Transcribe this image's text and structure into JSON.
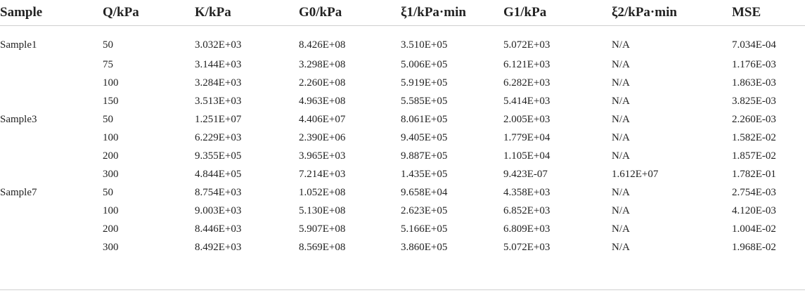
{
  "table": {
    "headers": [
      "Sample",
      "Q/kPa",
      "K/kPa",
      "G0/kPa",
      "ξ1/kPa·min",
      "G1/kPa",
      "ξ2/kPa·min",
      "MSE"
    ],
    "rows": [
      [
        "Sample1",
        "50",
        "3.032E+03",
        "8.426E+08",
        "3.510E+05",
        "5.072E+03",
        "N/A",
        "7.034E-04"
      ],
      [
        "",
        "75",
        "3.144E+03",
        "3.298E+08",
        "5.006E+05",
        "6.121E+03",
        "N/A",
        "1.176E-03"
      ],
      [
        "",
        "100",
        "3.284E+03",
        "2.260E+08",
        "5.919E+05",
        "6.282E+03",
        "N/A",
        "1.863E-03"
      ],
      [
        "",
        "150",
        "3.513E+03",
        "4.963E+08",
        "5.585E+05",
        "5.414E+03",
        "N/A",
        "3.825E-03"
      ],
      [
        "Sample3",
        "50",
        "1.251E+07",
        "4.406E+07",
        "8.061E+05",
        "2.005E+03",
        "N/A",
        "2.260E-03"
      ],
      [
        "",
        "100",
        "6.229E+03",
        "2.390E+06",
        "9.405E+05",
        "1.779E+04",
        "N/A",
        "1.582E-02"
      ],
      [
        "",
        "200",
        "9.355E+05",
        "3.965E+03",
        "9.887E+05",
        "1.105E+04",
        "N/A",
        "1.857E-02"
      ],
      [
        "",
        "300",
        "4.844E+05",
        "7.214E+03",
        "1.435E+05",
        "9.423E-07",
        "1.612E+07",
        "1.782E-01"
      ],
      [
        "Sample7",
        "50",
        "8.754E+03",
        "1.052E+08",
        "9.658E+04",
        "4.358E+03",
        "N/A",
        "2.754E-03"
      ],
      [
        "",
        "100",
        "9.003E+03",
        "5.130E+08",
        "2.623E+05",
        "6.852E+03",
        "N/A",
        "4.120E-03"
      ],
      [
        "",
        "200",
        "8.446E+03",
        "5.907E+08",
        "5.166E+05",
        "6.809E+03",
        "N/A",
        "1.004E-02"
      ],
      [
        "",
        "300",
        "8.492E+03",
        "8.569E+08",
        "3.860E+05",
        "5.072E+03",
        "N/A",
        "1.968E-02"
      ]
    ]
  }
}
